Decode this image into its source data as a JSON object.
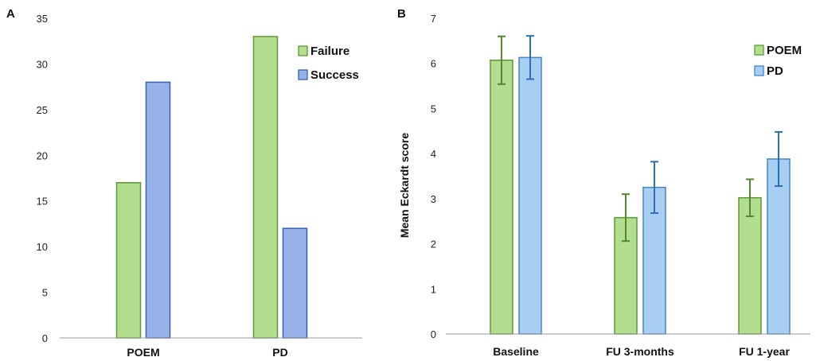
{
  "chart_data": [
    {
      "type": "bar",
      "panel": "A",
      "categories": [
        "POEM",
        "PD"
      ],
      "series": [
        {
          "name": "Failure",
          "values": [
            17,
            33
          ]
        },
        {
          "name": "Success",
          "values": [
            28,
            12
          ]
        }
      ],
      "title": "",
      "xlabel": "",
      "ylabel": "",
      "ylim": [
        0,
        35
      ],
      "yticks": [
        "0",
        "5",
        "10",
        "15",
        "20",
        "25",
        "30",
        "35"
      ],
      "grid": false,
      "legend": "top-right",
      "colors": {
        "Failure": {
          "fill": "#b3de8e",
          "stroke": "#5a9a35"
        },
        "Success": {
          "fill": "#97b2e8",
          "stroke": "#3560b5"
        }
      }
    },
    {
      "type": "bar",
      "panel": "B",
      "categories": [
        "Baseline",
        "FU 3-months",
        "FU 1-year"
      ],
      "series": [
        {
          "name": "POEM",
          "values": [
            6.07,
            2.58,
            3.02
          ],
          "error": [
            0.53,
            0.52,
            0.41
          ]
        },
        {
          "name": "PD",
          "values": [
            6.13,
            3.25,
            3.88
          ],
          "error": [
            0.48,
            0.57,
            0.6
          ]
        }
      ],
      "title": "",
      "xlabel": "",
      "ylabel": "Mean Eckardt score",
      "ylim": [
        0,
        7
      ],
      "yticks": [
        "0",
        "1",
        "2",
        "3",
        "4",
        "5",
        "6",
        "7"
      ],
      "grid": false,
      "legend": "top-right",
      "colors": {
        "POEM": {
          "fill": "#b3de8e",
          "stroke": "#5a9a35",
          "error": "#4f8a2e"
        },
        "PD": {
          "fill": "#a9cef4",
          "stroke": "#3f86c9",
          "error": "#2f6fb3"
        }
      }
    }
  ]
}
